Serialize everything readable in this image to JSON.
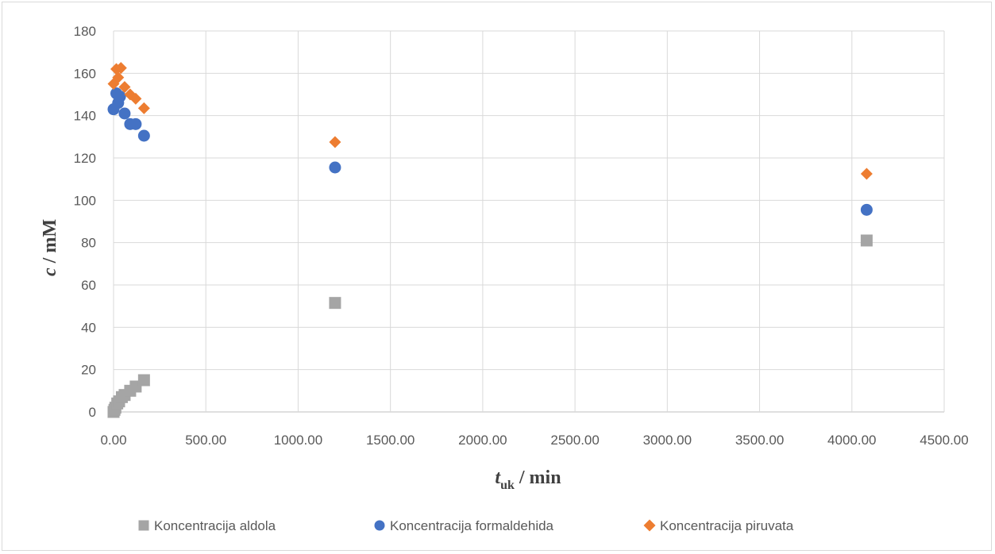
{
  "chart_data": {
    "type": "scatter",
    "title": "",
    "xlabel_main": "t",
    "xlabel_sub": "uk",
    "xlabel_unit": " / min",
    "ylabel_main": "c",
    "ylabel_unit": " / mM",
    "xlim": [
      0,
      4500
    ],
    "ylim": [
      0,
      180
    ],
    "x_ticks": [
      0,
      500,
      1000,
      1500,
      2000,
      2500,
      3000,
      3500,
      4000,
      4500
    ],
    "x_tick_labels": [
      "0.00",
      "500.00",
      "1000.00",
      "1500.00",
      "2000.00",
      "2500.00",
      "3000.00",
      "3500.00",
      "4000.00",
      "4500.00"
    ],
    "y_ticks": [
      0,
      20,
      40,
      60,
      80,
      100,
      120,
      140,
      160,
      180
    ],
    "y_tick_labels": [
      "0",
      "20",
      "40",
      "60",
      "80",
      "100",
      "120",
      "140",
      "160",
      "180"
    ],
    "grid": true,
    "legend_position": "bottom",
    "series": [
      {
        "name": "Koncentracija aldola",
        "marker": "square",
        "color": "#a5a5a5",
        "points": [
          [
            0,
            0
          ],
          [
            5,
            1
          ],
          [
            10,
            2
          ],
          [
            20,
            4
          ],
          [
            30,
            5
          ],
          [
            45,
            7
          ],
          [
            60,
            8
          ],
          [
            90,
            10
          ],
          [
            120,
            12
          ],
          [
            165,
            15
          ],
          [
            1200,
            51.5
          ],
          [
            4080,
            81
          ]
        ]
      },
      {
        "name": "Koncentracija formaldehida",
        "marker": "circle",
        "color": "#4472c4",
        "points": [
          [
            0,
            143
          ],
          [
            15,
            150.5
          ],
          [
            25,
            146
          ],
          [
            35,
            149
          ],
          [
            60,
            141
          ],
          [
            90,
            136
          ],
          [
            120,
            136
          ],
          [
            165,
            130.5
          ],
          [
            1200,
            115.5
          ],
          [
            4080,
            95.5
          ]
        ]
      },
      {
        "name": "Koncentracija piruvata",
        "marker": "diamond",
        "color": "#ed7d31",
        "points": [
          [
            0,
            155
          ],
          [
            15,
            162
          ],
          [
            25,
            158
          ],
          [
            40,
            162.5
          ],
          [
            60,
            153.5
          ],
          [
            90,
            150
          ],
          [
            120,
            148
          ],
          [
            165,
            143.5
          ],
          [
            1200,
            127.5
          ],
          [
            4080,
            112.5
          ]
        ]
      }
    ]
  }
}
